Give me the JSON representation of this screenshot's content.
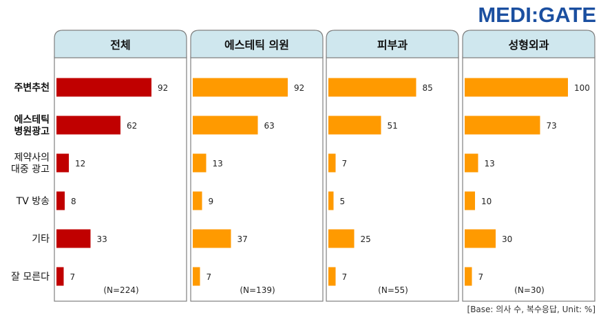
{
  "logo": {
    "text": "MEDI:GATE",
    "color": "#1b4fa0"
  },
  "footnote": "[Base: 의사 수, 복수응답, Unit: %]",
  "colors": {
    "header_bg": "#cfe7ee",
    "panel_border": "#7f7f7f",
    "first_panel_bar": "#c00000",
    "other_panel_bar": "#ff9a00"
  },
  "chart_data": {
    "type": "bar",
    "orientation": "horizontal",
    "categories": [
      "주변추천",
      "에스테틱 병원광고",
      "제약사의 대중 광고",
      "TV 방송",
      "기타",
      "잘 모른다"
    ],
    "category_lines": [
      [
        "주변추천"
      ],
      [
        "에스테틱",
        "병원광고"
      ],
      [
        "제약사의",
        "대중 광고"
      ],
      [
        "TV 방송"
      ],
      [
        "기타"
      ],
      [
        "잘 모른다"
      ]
    ],
    "category_bold": [
      true,
      true,
      false,
      false,
      false,
      false
    ],
    "panels": [
      {
        "name": "전체",
        "n": "(N=224)",
        "values": [
          92,
          62,
          12,
          8,
          33,
          7
        ],
        "color": "#c00000"
      },
      {
        "name": "에스테틱 의원",
        "n": "(N=139)",
        "values": [
          92,
          63,
          13,
          9,
          37,
          7
        ],
        "color": "#ff9a00"
      },
      {
        "name": "피부과",
        "n": "(N=55)",
        "values": [
          85,
          51,
          7,
          5,
          25,
          7
        ],
        "color": "#ff9a00"
      },
      {
        "name": "성형외과",
        "n": "(N=30)",
        "values": [
          100,
          73,
          13,
          10,
          30,
          7
        ],
        "color": "#ff9a00"
      }
    ],
    "xlim": [
      0,
      100
    ],
    "unit": "%"
  }
}
